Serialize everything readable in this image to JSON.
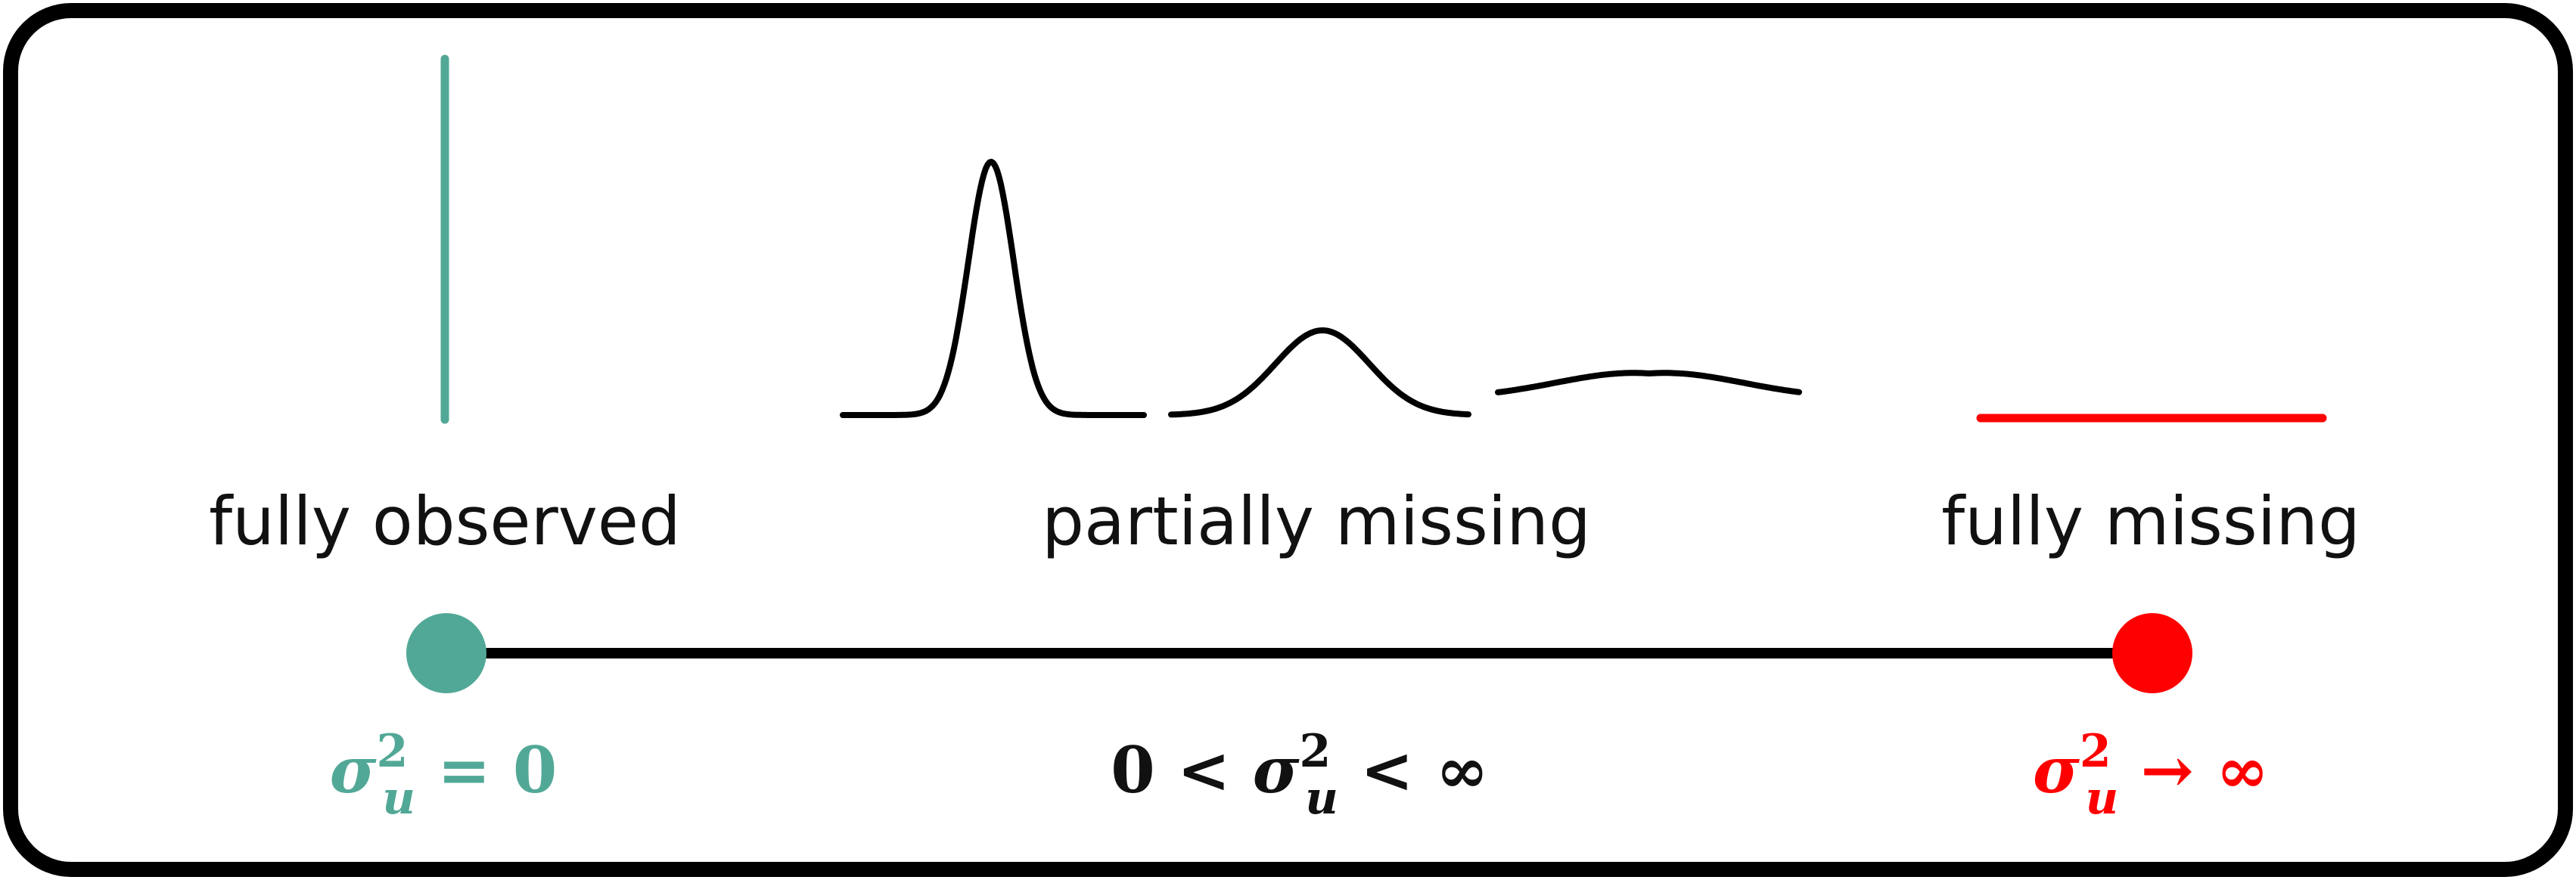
{
  "colors": {
    "observed": "#52a896",
    "partial": "#000000",
    "missing": "#ff0000",
    "frame": "#000000",
    "axis": "#000000"
  },
  "labels": {
    "observed": "fully observed",
    "partial": "partially missing",
    "missing": "fully missing"
  },
  "math": {
    "observed": {
      "sigma": "σ",
      "sup": "2",
      "sub": "u",
      "rest": " = 0"
    },
    "partial": {
      "prefix": "0 < ",
      "sigma": "σ",
      "sup": "2",
      "sub": "u",
      "rest": " < ∞"
    },
    "missing": {
      "sigma": "σ",
      "sup": "2",
      "sub": "u",
      "rest": " → ∞"
    }
  },
  "icons": {
    "observed": "vertical-line-dirac-icon",
    "partial_narrow": "narrow-gaussian-icon",
    "partial_medium": "medium-gaussian-icon",
    "partial_wide": "wide-gaussian-icon",
    "missing": "flat-line-icon"
  }
}
